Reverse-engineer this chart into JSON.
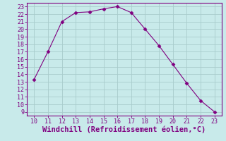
{
  "x": [
    10,
    11,
    12,
    13,
    14,
    15,
    16,
    17,
    18,
    19,
    20,
    21,
    22,
    23
  ],
  "y": [
    13.3,
    17.0,
    21.0,
    22.2,
    22.3,
    22.7,
    23.0,
    22.2,
    20.0,
    17.8,
    15.3,
    12.8,
    10.5,
    9.0
  ],
  "line_color": "#800080",
  "marker": "D",
  "marker_size": 2.5,
  "bg_color": "#c8eaea",
  "grid_color": "#a8cccc",
  "xlabel": "Windchill (Refroidissement éolien,°C)",
  "xlabel_color": "#800080",
  "xlim": [
    9.5,
    23.5
  ],
  "ylim": [
    8.5,
    23.5
  ],
  "xticks": [
    10,
    11,
    12,
    13,
    14,
    15,
    16,
    17,
    18,
    19,
    20,
    21,
    22,
    23
  ],
  "yticks": [
    9,
    10,
    11,
    12,
    13,
    14,
    15,
    16,
    17,
    18,
    19,
    20,
    21,
    22,
    23
  ],
  "tick_color": "#800080",
  "tick_fontsize": 6,
  "xlabel_fontsize": 7.5,
  "spine_color": "#800080"
}
